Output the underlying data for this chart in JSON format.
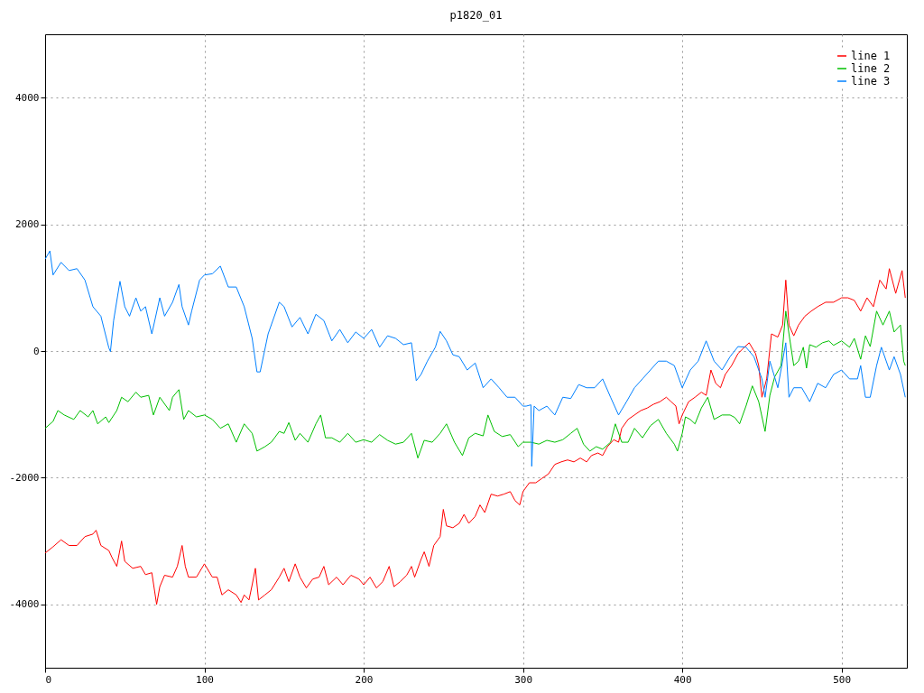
{
  "chart_data": {
    "type": "line",
    "title": "p1820_01",
    "xlim": [
      0,
      541
    ],
    "ylim": [
      -5000,
      5000
    ],
    "xticks": [
      0,
      100,
      200,
      300,
      400,
      500
    ],
    "yticks": [
      -4000,
      -2000,
      0,
      2000,
      4000
    ],
    "grid": true,
    "legend": "top right",
    "series": [
      {
        "name": "line 1",
        "color": "#ff0000",
        "x": [
          0,
          5,
          10,
          15,
          20,
          25,
          30,
          32,
          35,
          40,
          42,
          45,
          48,
          50,
          55,
          60,
          63,
          67,
          70,
          72,
          75,
          80,
          83,
          86,
          88,
          90,
          95,
          100,
          105,
          108,
          111,
          115,
          120,
          123,
          125,
          128,
          130,
          132,
          134,
          138,
          142,
          147,
          150,
          153,
          157,
          160,
          164,
          168,
          172,
          175,
          178,
          183,
          187,
          192,
          197,
          200,
          204,
          208,
          212,
          216,
          219,
          223,
          227,
          230,
          232,
          236,
          238,
          241,
          244,
          248,
          250,
          252,
          256,
          260,
          263,
          266,
          270,
          273,
          276,
          280,
          284,
          288,
          292,
          295,
          298,
          300,
          304,
          308,
          312,
          316,
          320,
          324,
          328,
          332,
          336,
          340,
          343,
          347,
          350,
          353,
          357,
          360,
          362,
          366,
          370,
          374,
          378,
          382,
          386,
          390,
          393,
          396,
          398,
          400,
          404,
          408,
          412,
          415,
          418,
          421,
          424,
          427,
          431,
          435,
          439,
          442,
          446,
          448,
          450,
          453,
          456,
          460,
          463,
          465,
          467,
          470,
          473,
          477,
          481,
          485,
          490,
          495,
          500,
          504,
          508,
          512,
          516,
          520,
          524,
          528,
          530,
          534,
          538,
          540
        ],
        "values": [
          -3190,
          -3090,
          -2980,
          -3070,
          -3070,
          -2930,
          -2890,
          -2830,
          -3070,
          -3150,
          -3260,
          -3400,
          -3000,
          -3320,
          -3430,
          -3400,
          -3530,
          -3500,
          -4000,
          -3720,
          -3540,
          -3570,
          -3400,
          -3070,
          -3400,
          -3570,
          -3570,
          -3360,
          -3570,
          -3570,
          -3850,
          -3770,
          -3850,
          -3970,
          -3850,
          -3930,
          -3690,
          -3430,
          -3930,
          -3850,
          -3770,
          -3570,
          -3430,
          -3640,
          -3360,
          -3570,
          -3740,
          -3600,
          -3570,
          -3400,
          -3690,
          -3570,
          -3690,
          -3540,
          -3600,
          -3690,
          -3570,
          -3740,
          -3640,
          -3400,
          -3720,
          -3640,
          -3540,
          -3400,
          -3570,
          -3290,
          -3170,
          -3400,
          -3070,
          -2930,
          -2500,
          -2760,
          -2790,
          -2720,
          -2580,
          -2720,
          -2610,
          -2430,
          -2550,
          -2260,
          -2290,
          -2260,
          -2220,
          -2360,
          -2430,
          -2220,
          -2080,
          -2080,
          -2010,
          -1940,
          -1790,
          -1750,
          -1720,
          -1750,
          -1690,
          -1750,
          -1650,
          -1610,
          -1650,
          -1510,
          -1400,
          -1440,
          -1220,
          -1080,
          -1010,
          -940,
          -900,
          -840,
          -800,
          -730,
          -800,
          -870,
          -1150,
          -1010,
          -800,
          -730,
          -650,
          -700,
          -300,
          -510,
          -580,
          -370,
          -230,
          -40,
          60,
          130,
          -40,
          -230,
          -730,
          -440,
          270,
          220,
          410,
          1120,
          410,
          240,
          410,
          550,
          630,
          700,
          770,
          770,
          840,
          840,
          800,
          630,
          840,
          700,
          1120,
          980,
          1300,
          910,
          1270,
          840
        ]
      },
      {
        "name": "line 2",
        "color": "#00c000",
        "x": [
          0,
          5,
          8,
          12,
          18,
          22,
          27,
          30,
          33,
          38,
          40,
          45,
          48,
          52,
          57,
          60,
          65,
          68,
          72,
          78,
          80,
          84,
          87,
          90,
          95,
          100,
          105,
          110,
          115,
          120,
          125,
          130,
          133,
          138,
          142,
          147,
          150,
          153,
          157,
          160,
          165,
          170,
          173,
          176,
          180,
          185,
          190,
          195,
          200,
          205,
          210,
          215,
          220,
          225,
          230,
          234,
          238,
          243,
          248,
          252,
          257,
          262,
          266,
          270,
          275,
          278,
          282,
          287,
          292,
          297,
          300,
          305,
          310,
          315,
          320,
          325,
          330,
          334,
          338,
          342,
          346,
          350,
          355,
          358,
          362,
          366,
          370,
          375,
          380,
          385,
          390,
          395,
          397,
          400,
          402,
          405,
          408,
          412,
          416,
          420,
          425,
          430,
          433,
          436,
          440,
          444,
          448,
          452,
          455,
          458,
          462,
          465,
          467,
          470,
          473,
          476,
          478,
          480,
          484,
          488,
          492,
          495,
          500,
          505,
          508,
          512,
          515,
          518,
          522,
          526,
          530,
          533,
          537,
          539,
          540
        ],
        "values": [
          -1220,
          -1110,
          -940,
          -1010,
          -1080,
          -940,
          -1040,
          -940,
          -1150,
          -1040,
          -1130,
          -940,
          -730,
          -800,
          -650,
          -730,
          -700,
          -1010,
          -730,
          -940,
          -730,
          -610,
          -1080,
          -940,
          -1040,
          -1010,
          -1080,
          -1220,
          -1150,
          -1440,
          -1150,
          -1300,
          -1580,
          -1510,
          -1440,
          -1270,
          -1300,
          -1130,
          -1410,
          -1300,
          -1440,
          -1150,
          -1010,
          -1370,
          -1370,
          -1440,
          -1300,
          -1440,
          -1400,
          -1440,
          -1320,
          -1410,
          -1470,
          -1440,
          -1300,
          -1690,
          -1410,
          -1440,
          -1300,
          -1150,
          -1440,
          -1650,
          -1370,
          -1300,
          -1340,
          -1010,
          -1270,
          -1350,
          -1320,
          -1510,
          -1440,
          -1440,
          -1470,
          -1410,
          -1440,
          -1400,
          -1300,
          -1220,
          -1470,
          -1580,
          -1510,
          -1550,
          -1440,
          -1150,
          -1440,
          -1440,
          -1220,
          -1370,
          -1180,
          -1080,
          -1300,
          -1470,
          -1580,
          -1300,
          -1040,
          -1080,
          -1150,
          -900,
          -730,
          -1080,
          -1010,
          -1010,
          -1050,
          -1150,
          -870,
          -550,
          -800,
          -1270,
          -700,
          -410,
          -230,
          630,
          270,
          -230,
          -160,
          60,
          -270,
          100,
          60,
          130,
          160,
          90,
          160,
          60,
          200,
          -130,
          240,
          70,
          630,
          410,
          630,
          300,
          410,
          -160,
          -230
        ]
      },
      {
        "name": "line 3",
        "color": "#0080ff",
        "x": [
          0,
          3,
          5,
          10,
          15,
          20,
          25,
          30,
          35,
          40,
          41,
          43,
          47,
          50,
          53,
          57,
          60,
          63,
          67,
          72,
          75,
          80,
          84,
          86,
          90,
          92,
          97,
          100,
          105,
          110,
          115,
          120,
          125,
          130,
          133,
          135,
          140,
          147,
          150,
          155,
          160,
          165,
          170,
          175,
          180,
          185,
          190,
          195,
          200,
          205,
          210,
          215,
          220,
          225,
          230,
          233,
          236,
          240,
          245,
          248,
          252,
          256,
          260,
          265,
          270,
          275,
          280,
          285,
          290,
          295,
          300,
          302,
          305,
          305.5,
          307,
          310,
          315,
          320,
          325,
          330,
          335,
          340,
          345,
          350,
          355,
          360,
          365,
          370,
          375,
          380,
          385,
          390,
          395,
          400,
          405,
          410,
          415,
          420,
          425,
          430,
          435,
          440,
          445,
          450,
          452,
          455,
          460,
          465,
          467,
          470,
          475,
          480,
          485,
          490,
          495,
          500,
          505,
          510,
          512,
          515,
          518,
          522,
          525,
          530,
          533,
          537,
          540
        ],
        "values": [
          1450,
          1580,
          1200,
          1400,
          1270,
          1300,
          1120,
          700,
          550,
          50,
          -10,
          480,
          1100,
          700,
          550,
          840,
          630,
          700,
          270,
          840,
          550,
          770,
          1050,
          700,
          410,
          630,
          1120,
          1200,
          1220,
          1340,
          1010,
          1010,
          700,
          200,
          -330,
          -330,
          270,
          770,
          700,
          380,
          530,
          270,
          580,
          480,
          160,
          340,
          130,
          300,
          200,
          340,
          60,
          240,
          200,
          100,
          130,
          -470,
          -370,
          -160,
          60,
          310,
          160,
          -60,
          -90,
          -300,
          -190,
          -580,
          -440,
          -580,
          -730,
          -730,
          -870,
          -870,
          -850,
          -1820,
          -870,
          -940,
          -870,
          -1010,
          -730,
          -750,
          -530,
          -580,
          -580,
          -440,
          -730,
          -1010,
          -800,
          -580,
          -440,
          -300,
          -160,
          -160,
          -230,
          -580,
          -300,
          -160,
          160,
          -160,
          -300,
          -90,
          70,
          60,
          -90,
          -440,
          -730,
          -160,
          -580,
          130,
          -730,
          -580,
          -580,
          -800,
          -510,
          -580,
          -370,
          -300,
          -440,
          -440,
          -230,
          -730,
          -730,
          -230,
          60,
          -300,
          -90,
          -370,
          -730
        ]
      }
    ]
  }
}
